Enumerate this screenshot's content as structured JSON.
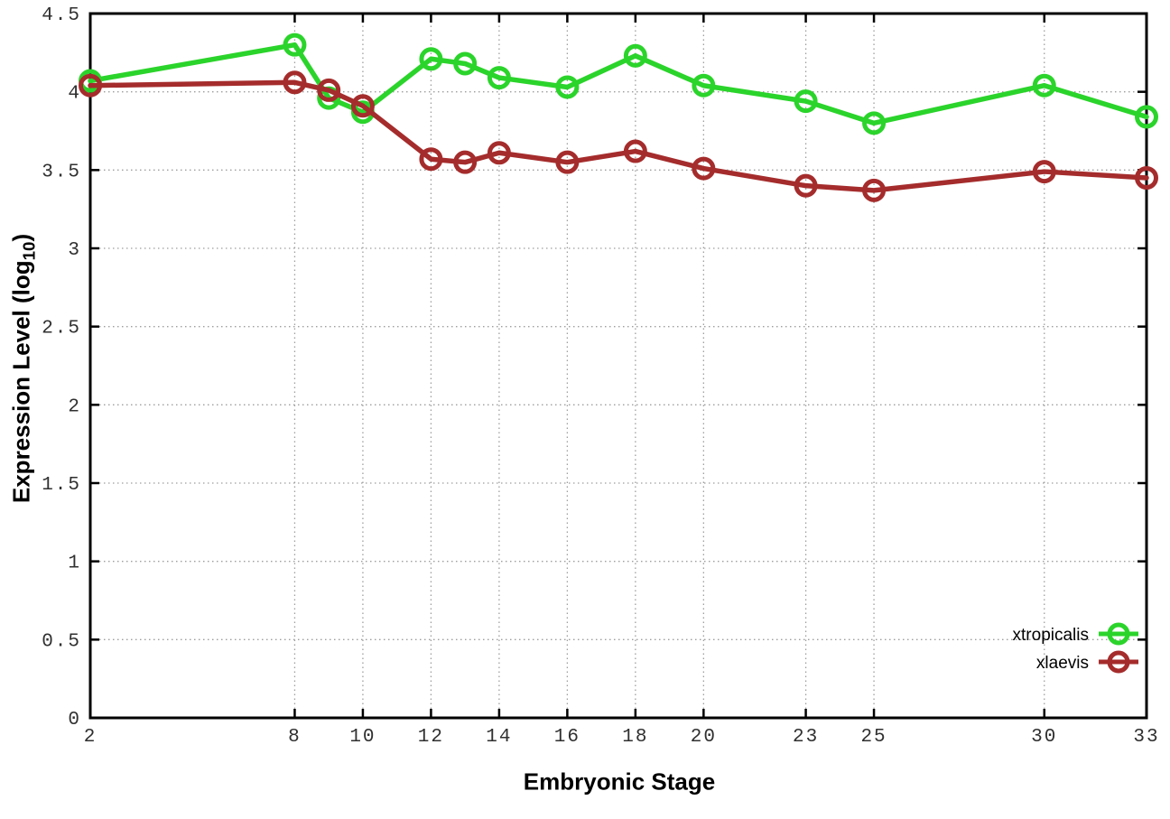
{
  "axes": {
    "x_title": "Embryonic Stage",
    "y_title_main": "Expression Level (log",
    "y_title_sub": "10",
    "y_title_close": ")"
  },
  "colors": {
    "xtropicalis": "#2bd42b",
    "xlaevis": "#a52c2c",
    "frame": "#000000",
    "grid": "#9e9e9e",
    "tick_text": "#303030",
    "background": "#ffffff"
  },
  "chart_data": {
    "type": "line",
    "title": "",
    "xlabel": "Embryonic Stage",
    "ylabel": "Expression Level (log10)",
    "xlim": [
      2,
      33
    ],
    "ylim": [
      0,
      4.5
    ],
    "grid": true,
    "grid_style": "dotted",
    "legend_position": "bottom-right-inside",
    "x_tick_values": [
      2,
      8,
      10,
      12,
      14,
      16,
      18,
      20,
      23,
      25,
      30,
      33
    ],
    "x_tick_labels": [
      "2",
      "8",
      "10",
      "12",
      "14",
      "16",
      "18",
      "20",
      "23",
      "25",
      "30",
      "33"
    ],
    "y_tick_values": [
      0,
      0.5,
      1,
      1.5,
      2,
      2.5,
      3,
      3.5,
      4,
      4.5
    ],
    "y_tick_labels": [
      "0",
      "0.5",
      "1",
      "1.5",
      "2",
      "2.5",
      "3",
      "3.5",
      "4",
      "4.5"
    ],
    "x": [
      2,
      8,
      9,
      10,
      12,
      13,
      14,
      16,
      18,
      20,
      23,
      25,
      30,
      33
    ],
    "series": [
      {
        "name": "xtropicalis",
        "color": "#2bd42b",
        "marker": "open-circle",
        "values": [
          4.07,
          4.3,
          3.96,
          3.87,
          4.21,
          4.18,
          4.09,
          4.03,
          4.23,
          4.04,
          3.94,
          3.8,
          4.04,
          3.84
        ]
      },
      {
        "name": "xlaevis",
        "color": "#a52c2c",
        "marker": "open-circle",
        "values": [
          4.04,
          4.06,
          4.01,
          3.91,
          3.57,
          3.55,
          3.61,
          3.55,
          3.62,
          3.51,
          3.4,
          3.37,
          3.49,
          3.45
        ]
      }
    ]
  }
}
